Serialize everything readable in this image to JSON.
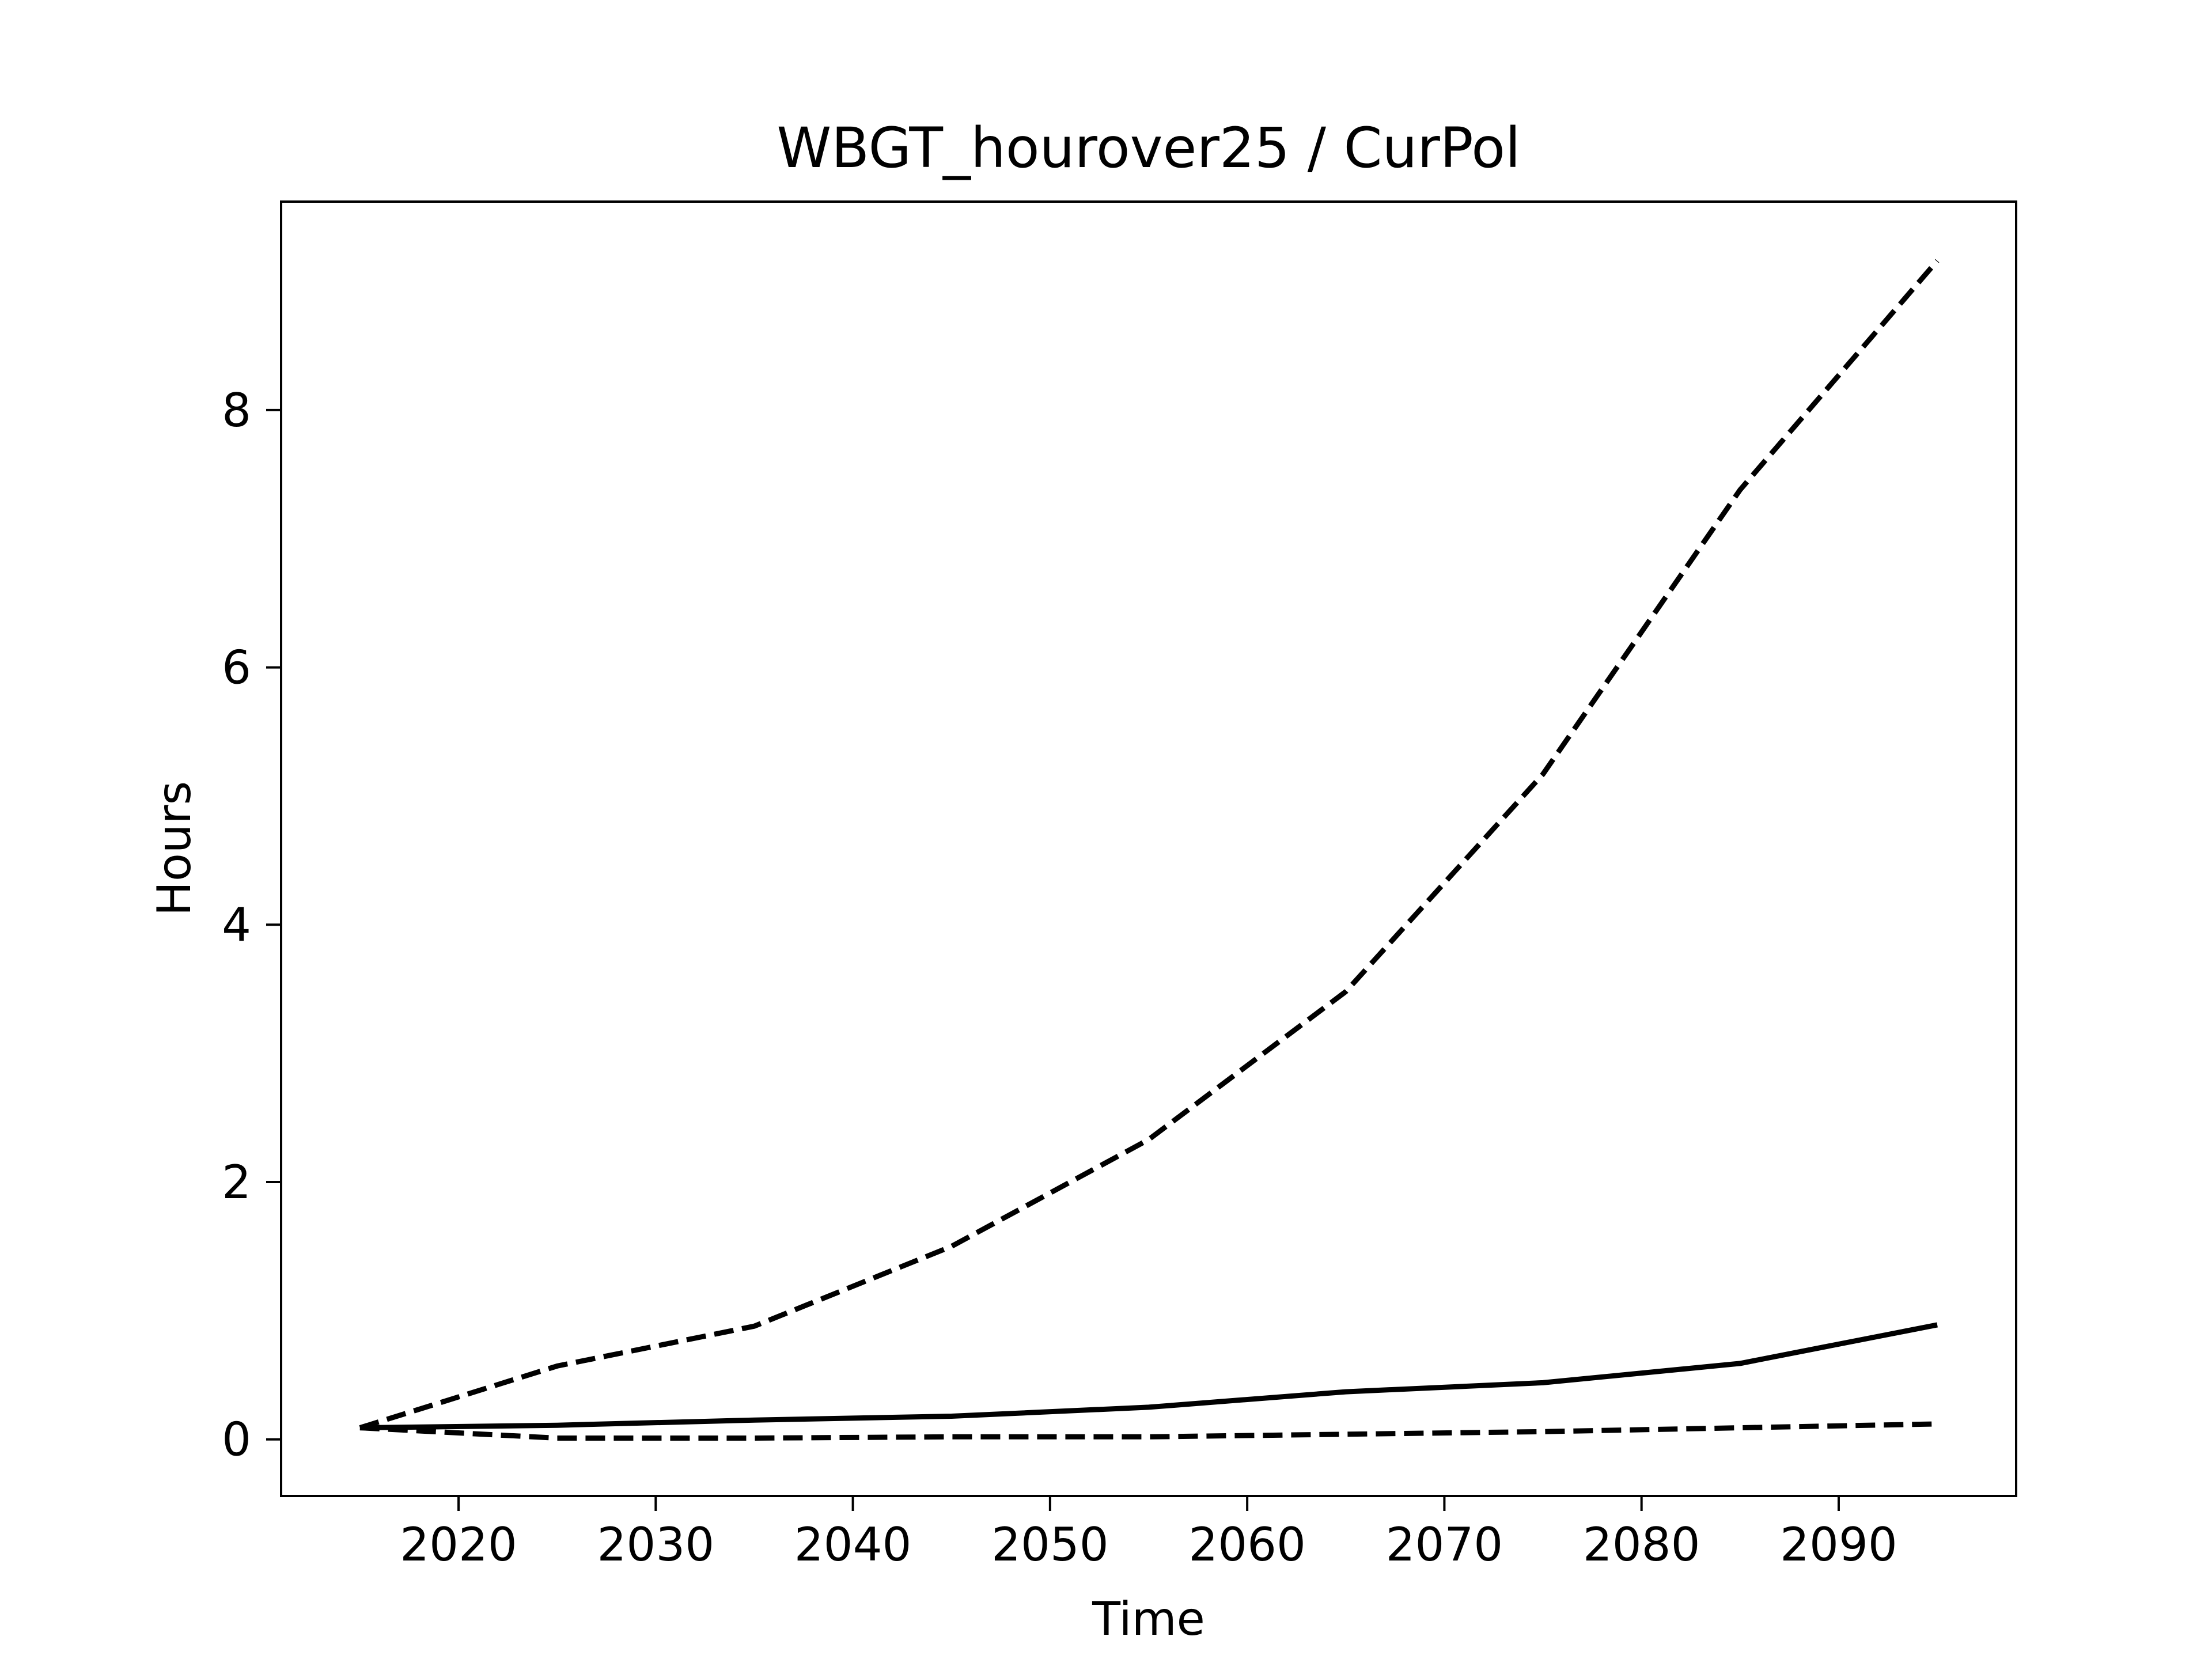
{
  "chart_data": {
    "type": "line",
    "title": "WBGT_hourover25 / CurPol",
    "xlabel": "Time",
    "ylabel": "Hours",
    "xlim": [
      2011,
      2099
    ],
    "ylim": [
      -0.44,
      9.62
    ],
    "grid": false,
    "x_ticks": [
      2020,
      2030,
      2040,
      2050,
      2060,
      2070,
      2080,
      2090
    ],
    "y_ticks": [
      0,
      2,
      4,
      6,
      8
    ],
    "x": [
      2015,
      2025,
      2035,
      2045,
      2055,
      2065,
      2075,
      2085,
      2095
    ],
    "series": [
      {
        "style": "solid",
        "color": "#000000",
        "values": [
          0.09,
          0.11,
          0.15,
          0.18,
          0.25,
          0.37,
          0.44,
          0.59,
          0.89
        ]
      },
      {
        "style": "dashed",
        "color": "#000000",
        "values": [
          0.09,
          0.57,
          0.88,
          1.5,
          2.33,
          3.48,
          5.17,
          7.38,
          9.16
        ]
      },
      {
        "style": "dashed",
        "color": "#000000",
        "values": [
          0.09,
          0.01,
          0.01,
          0.02,
          0.02,
          0.04,
          0.06,
          0.09,
          0.12
        ]
      }
    ]
  }
}
